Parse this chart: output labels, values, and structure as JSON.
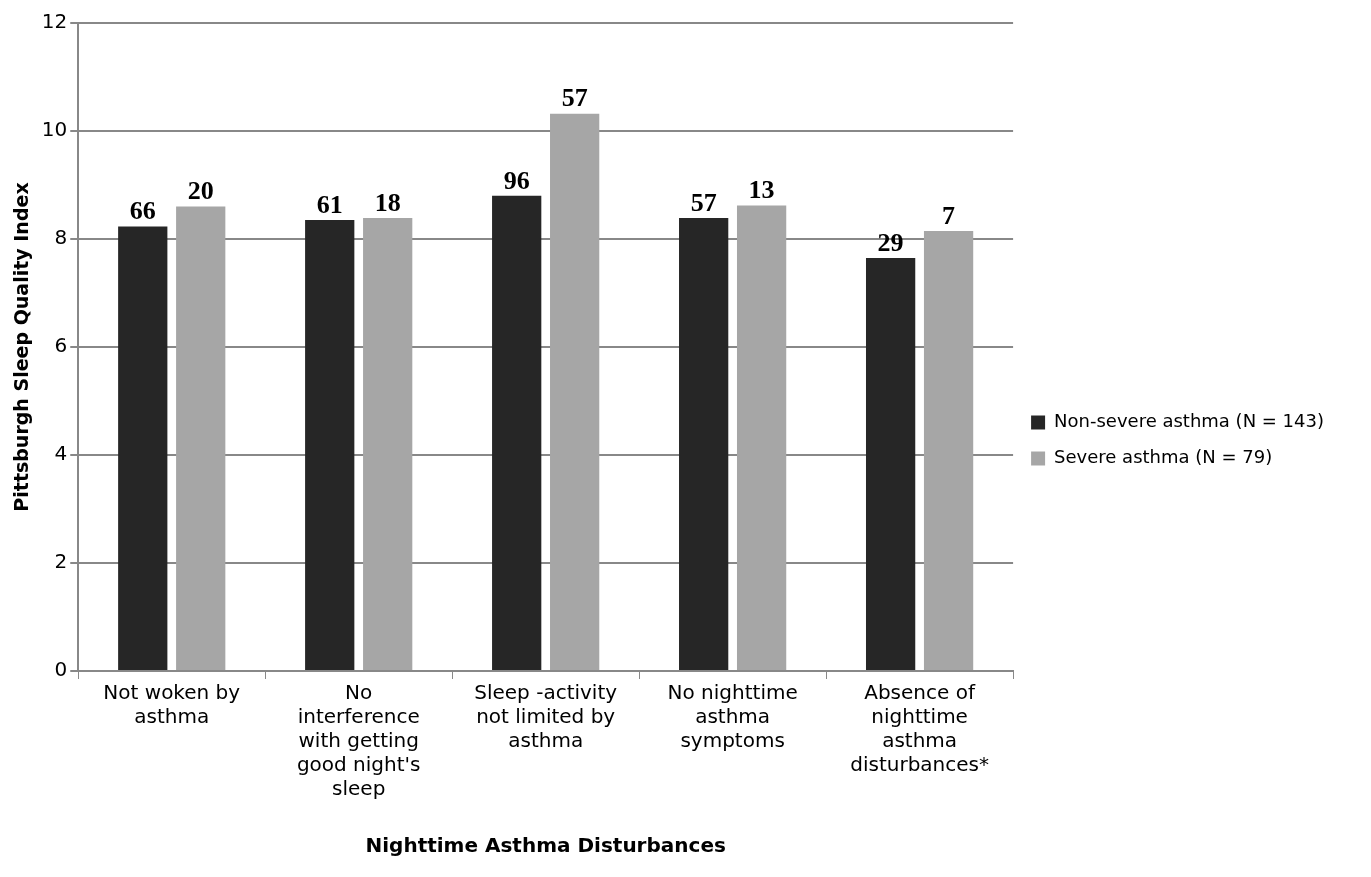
{
  "chart_data": {
    "type": "bar",
    "xlabel": "Nighttime Asthma Disturbances",
    "ylabel": "Pittsburgh Sleep Quality Index",
    "categories": [
      "Not woken by asthma",
      "No interference with getting good night's sleep",
      "Sleep -activity not limited by asthma",
      "No nighttime asthma symptoms",
      "Absence of nighttime asthma disturbances*"
    ],
    "series": [
      {
        "name": "Non-severe asthma (N = 143)",
        "color": "#262626",
        "values": [
          8.23,
          8.35,
          8.8,
          8.39,
          7.65
        ]
      },
      {
        "name": "Severe asthma (N = 79)",
        "color": "#a6a6a6",
        "values": [
          8.6,
          8.39,
          10.32,
          8.62,
          8.15
        ]
      }
    ],
    "annotations": [
      {
        "text": "66",
        "x": "Not woken by asthma",
        "y": 8.23
      },
      {
        "text": "20",
        "x": "Not woken by asthma",
        "y": 8.6
      },
      {
        "text": "61",
        "x": "No interference with getting good night's sleep",
        "y": 8.35
      },
      {
        "text": "18",
        "x": "No interference with getting good night's sleep",
        "y": 8.39
      },
      {
        "text": "96",
        "x": "Sleep -activity not limited by asthma",
        "y": 8.8
      },
      {
        "text": "57",
        "x": "Sleep -activity not limited by asthma",
        "y": 10.32
      },
      {
        "text": "57",
        "x": "No nighttime asthma symptoms",
        "y": 8.39
      },
      {
        "text": "13",
        "x": "No nighttime asthma symptoms",
        "y": 8.62
      },
      {
        "text": "29",
        "x": "Absence of nighttime asthma disturbances*",
        "y": 7.65
      },
      {
        "text": "7",
        "x": "Absence of nighttime asthma disturbances*",
        "y": 8.15
      }
    ],
    "ylim": [
      0,
      12
    ],
    "yticks": [
      0,
      2,
      4,
      6,
      8,
      10,
      12
    ],
    "grid": "y",
    "legend": "right"
  }
}
